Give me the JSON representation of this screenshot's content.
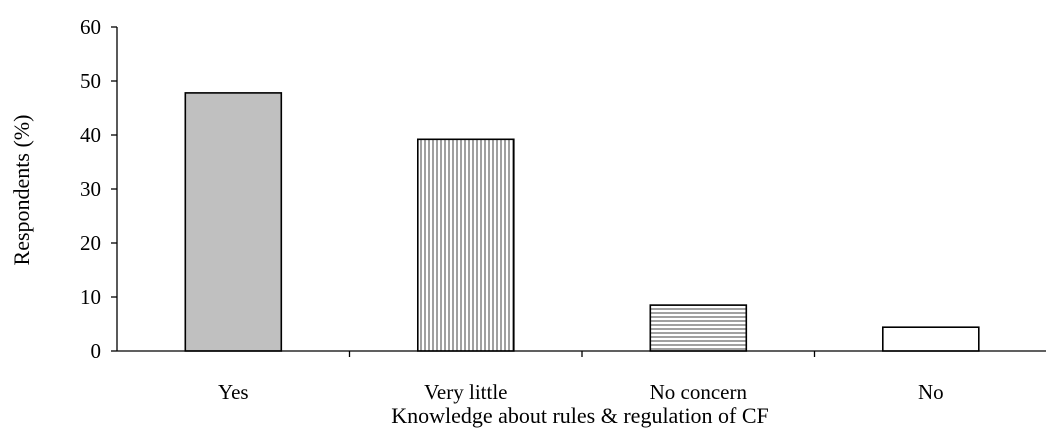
{
  "chart_data": {
    "type": "bar",
    "title": "",
    "xlabel": "Knowledge about rules & regulation of CF",
    "ylabel": "Respondents (%)",
    "categories": [
      "Yes",
      "Very little",
      "No concern",
      "No"
    ],
    "values": [
      47.8,
      39.2,
      8.5,
      4.4
    ],
    "ylim": [
      0,
      60
    ],
    "yticks": [
      "0",
      "10",
      "20",
      "30",
      "40",
      "50",
      "60"
    ],
    "grid": false,
    "legend": "none",
    "bar_fills": [
      "solid-gray",
      "vertical-stripes",
      "horizontal-stripes",
      "white"
    ],
    "colors": {
      "bar_gray": "#c0c0c0",
      "stripe": "#9e9e9e",
      "outline": "#000000",
      "background": "#ffffff"
    }
  }
}
